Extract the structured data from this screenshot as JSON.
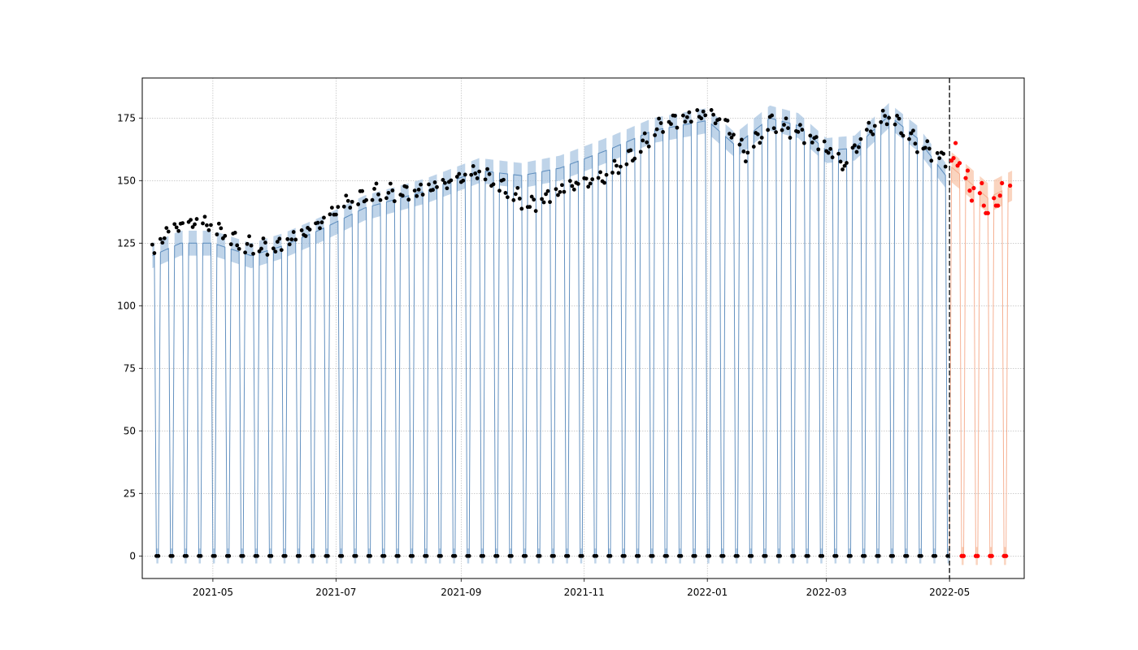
{
  "chart_data": {
    "type": "line",
    "title": "",
    "xlabel": "",
    "ylabel": "",
    "x_range": [
      "2021-03-27",
      "2022-06-07"
    ],
    "ylim": [
      -9.0,
      191.0
    ],
    "grid": true,
    "legend": "none",
    "x_ticks": [
      "2021-05",
      "2021-07",
      "2021-09",
      "2021-11",
      "2022-01",
      "2022-03",
      "2022-05"
    ],
    "y_ticks": [
      "0",
      "25",
      "50",
      "75",
      "100",
      "125",
      "150",
      "175"
    ],
    "cutoff_date": "2022-05-01",
    "series": [
      {
        "role": "history-forecast",
        "color": "#4a7fb5",
        "band_color": "#a4c2e0",
        "x_start": "2021-04-01",
        "x_end": "2022-05-01",
        "weekend_value": 0,
        "weekday_level_points": [
          {
            "x": "2021-04-01",
            "y": 120
          },
          {
            "x": "2021-04-15",
            "y": 125
          },
          {
            "x": "2021-05-01",
            "y": 125
          },
          {
            "x": "2021-05-20",
            "y": 120
          },
          {
            "x": "2021-06-05",
            "y": 124
          },
          {
            "x": "2021-06-25",
            "y": 131
          },
          {
            "x": "2021-07-15",
            "y": 139
          },
          {
            "x": "2021-08-15",
            "y": 146
          },
          {
            "x": "2021-09-10",
            "y": 154
          },
          {
            "x": "2021-10-01",
            "y": 152
          },
          {
            "x": "2021-10-20",
            "y": 155
          },
          {
            "x": "2021-11-15",
            "y": 163
          },
          {
            "x": "2021-12-05",
            "y": 170
          },
          {
            "x": "2022-01-01",
            "y": 174
          },
          {
            "x": "2022-01-15",
            "y": 164
          },
          {
            "x": "2022-02-01",
            "y": 175
          },
          {
            "x": "2022-02-15",
            "y": 172
          },
          {
            "x": "2022-03-01",
            "y": 162
          },
          {
            "x": "2022-03-15",
            "y": 163
          },
          {
            "x": "2022-04-01",
            "y": 176
          },
          {
            "x": "2022-04-15",
            "y": 167
          },
          {
            "x": "2022-05-01",
            "y": 150
          }
        ],
        "band_halfwidth": 5
      },
      {
        "role": "prediction",
        "color": "#f4a582",
        "band_color": "#f8c2a4",
        "x_start": "2022-05-01",
        "x_end": "2022-06-01",
        "weekend_value": 0,
        "weekday_level_points": [
          {
            "x": "2022-05-01",
            "y": 156
          },
          {
            "x": "2022-05-10",
            "y": 150
          },
          {
            "x": "2022-05-20",
            "y": 143
          },
          {
            "x": "2022-06-01",
            "y": 148
          }
        ],
        "band_halfwidth": 6
      }
    ],
    "actual_points": {
      "color": "#000000",
      "weekend_value": 0,
      "weekday_level_points": [
        {
          "x": "2021-04-01",
          "y": 121
        },
        {
          "x": "2021-04-10",
          "y": 130
        },
        {
          "x": "2021-04-25",
          "y": 133
        },
        {
          "x": "2021-05-10",
          "y": 127
        },
        {
          "x": "2021-05-15",
          "y": 124
        },
        {
          "x": "2021-06-01",
          "y": 123
        },
        {
          "x": "2021-06-20",
          "y": 130
        },
        {
          "x": "2021-07-05",
          "y": 140
        },
        {
          "x": "2021-07-20",
          "y": 145
        },
        {
          "x": "2021-08-10",
          "y": 145
        },
        {
          "x": "2021-08-25",
          "y": 148
        },
        {
          "x": "2021-09-10",
          "y": 153
        },
        {
          "x": "2021-09-20",
          "y": 148
        },
        {
          "x": "2021-10-05",
          "y": 140
        },
        {
          "x": "2021-10-25",
          "y": 147
        },
        {
          "x": "2021-11-10",
          "y": 150
        },
        {
          "x": "2021-11-25",
          "y": 160
        },
        {
          "x": "2021-12-10",
          "y": 173
        },
        {
          "x": "2021-12-25",
          "y": 175
        },
        {
          "x": "2022-01-01",
          "y": 176
        },
        {
          "x": "2022-01-10",
          "y": 172
        },
        {
          "x": "2022-01-20",
          "y": 160
        },
        {
          "x": "2022-02-01",
          "y": 173
        },
        {
          "x": "2022-02-15",
          "y": 170
        },
        {
          "x": "2022-02-28",
          "y": 163
        },
        {
          "x": "2022-03-10",
          "y": 155
        },
        {
          "x": "2022-03-20",
          "y": 168
        },
        {
          "x": "2022-04-01",
          "y": 176
        },
        {
          "x": "2022-04-15",
          "y": 165
        },
        {
          "x": "2022-04-30",
          "y": 158
        }
      ]
    },
    "test_points": {
      "color": "#ff0000",
      "weekend_value": 0,
      "points": [
        {
          "x": "2022-05-02",
          "y": 158
        },
        {
          "x": "2022-05-03",
          "y": 159
        },
        {
          "x": "2022-05-04",
          "y": 165
        },
        {
          "x": "2022-05-05",
          "y": 156
        },
        {
          "x": "2022-05-06",
          "y": 157
        },
        {
          "x": "2022-05-09",
          "y": 151
        },
        {
          "x": "2022-05-10",
          "y": 154
        },
        {
          "x": "2022-05-11",
          "y": 146
        },
        {
          "x": "2022-05-12",
          "y": 142
        },
        {
          "x": "2022-05-13",
          "y": 147
        },
        {
          "x": "2022-05-16",
          "y": 145
        },
        {
          "x": "2022-05-17",
          "y": 149
        },
        {
          "x": "2022-05-18",
          "y": 140
        },
        {
          "x": "2022-05-19",
          "y": 137
        },
        {
          "x": "2022-05-20",
          "y": 137
        },
        {
          "x": "2022-05-23",
          "y": 143
        },
        {
          "x": "2022-05-24",
          "y": 140
        },
        {
          "x": "2022-05-25",
          "y": 140
        },
        {
          "x": "2022-05-26",
          "y": 144
        },
        {
          "x": "2022-05-27",
          "y": 149
        },
        {
          "x": "2022-05-31",
          "y": 148
        }
      ]
    }
  }
}
